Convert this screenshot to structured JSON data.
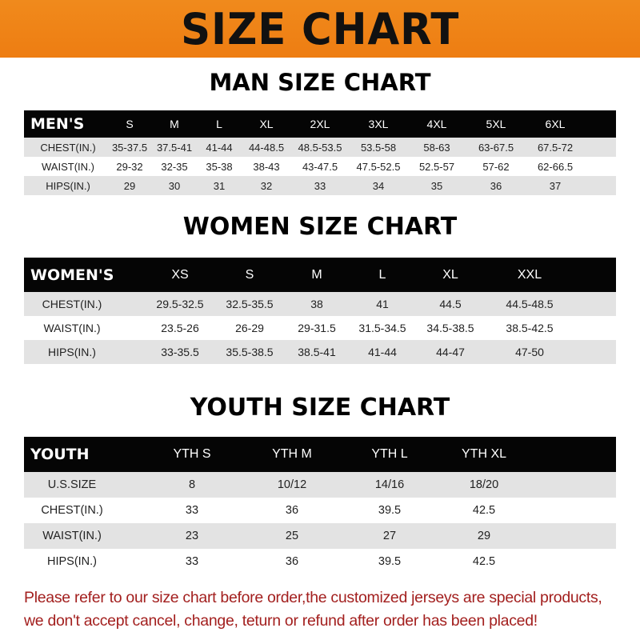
{
  "title": "SIZE CHART",
  "colors": {
    "banner": "#ef8418",
    "header_row": "#050505",
    "stripe": "#e3e3e3",
    "note": "#a3201f"
  },
  "men": {
    "title": "MAN SIZE CHART",
    "header": "MEN'S",
    "sizes": [
      "S",
      "M",
      "L",
      "XL",
      "2XL",
      "3XL",
      "4XL",
      "5XL",
      "6XL"
    ],
    "rows": [
      {
        "label": "CHEST(IN.)",
        "values": [
          "35-37.5",
          "37.5-41",
          "41-44",
          "44-48.5",
          "48.5-53.5",
          "53.5-58",
          "58-63",
          "63-67.5",
          "67.5-72"
        ]
      },
      {
        "label": "WAIST(IN.)",
        "values": [
          "29-32",
          "32-35",
          "35-38",
          "38-43",
          "43-47.5",
          "47.5-52.5",
          "52.5-57",
          "57-62",
          "62-66.5"
        ]
      },
      {
        "label": "HIPS(IN.)",
        "values": [
          "29",
          "30",
          "31",
          "32",
          "33",
          "34",
          "35",
          "36",
          "37"
        ]
      }
    ]
  },
  "women": {
    "title": "WOMEN SIZE CHART",
    "header": "WOMEN'S",
    "sizes": [
      "XS",
      "S",
      "M",
      "L",
      "XL",
      "XXL"
    ],
    "rows": [
      {
        "label": "CHEST(IN.)",
        "values": [
          "29.5-32.5",
          "32.5-35.5",
          "38",
          "41",
          "44.5",
          "44.5-48.5"
        ]
      },
      {
        "label": "WAIST(IN.)",
        "values": [
          "23.5-26",
          "26-29",
          "29-31.5",
          "31.5-34.5",
          "34.5-38.5",
          "38.5-42.5"
        ]
      },
      {
        "label": "HIPS(IN.)",
        "values": [
          "33-35.5",
          "35.5-38.5",
          "38.5-41",
          "41-44",
          "44-47",
          "47-50"
        ]
      }
    ]
  },
  "youth": {
    "title": "YOUTH SIZE CHART",
    "header": "YOUTH",
    "sizes": [
      "YTH S",
      "YTH M",
      "YTH L",
      "YTH XL"
    ],
    "rows": [
      {
        "label": "U.S.SIZE",
        "values": [
          "8",
          "10/12",
          "14/16",
          "18/20"
        ]
      },
      {
        "label": "CHEST(IN.)",
        "values": [
          "33",
          "36",
          "39.5",
          "42.5"
        ]
      },
      {
        "label": "WAIST(IN.)",
        "values": [
          "23",
          "25",
          "27",
          "29"
        ]
      },
      {
        "label": "HIPS(IN.)",
        "values": [
          "33",
          "36",
          "39.5",
          "42.5"
        ]
      }
    ]
  },
  "note": [
    "Please refer to our size chart before order,the customized jerseys are special products,",
    "we don't accept cancel, change, teturn or refund after order has been placed!"
  ]
}
